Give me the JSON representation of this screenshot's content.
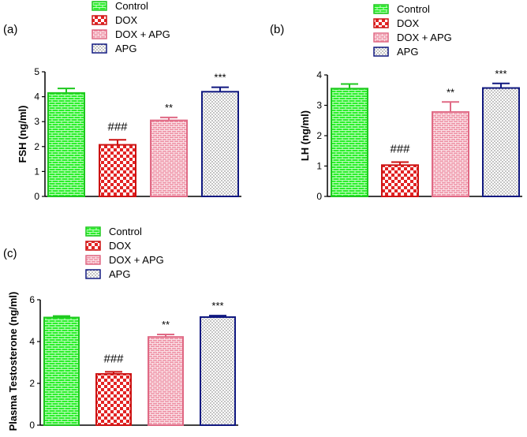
{
  "legend": [
    "Control",
    "DOX",
    "DOX + APG",
    "APG"
  ],
  "colors": {
    "control_fill": "#2bef2b",
    "control_edge": "#1ec81e",
    "control_pattern": "#e8ffe8",
    "dox_fill": "#e22424",
    "dox_edge": "#cc1111",
    "dox_pattern": "#ffffff",
    "doxapg_fill": "#ee8fa3",
    "doxapg_edge": "#e06a85",
    "doxapg_pattern": "#ffffff",
    "apg_fill": "#ffffff",
    "apg_edge": "#101880",
    "apg_pattern": "#303030",
    "axis": "#000000"
  },
  "chart_data": [
    {
      "panel": "(a)",
      "type": "bar",
      "ylabel": "FSH (ng/ml)",
      "categories": [
        "Control",
        "DOX",
        "DOX + APG",
        "APG"
      ],
      "values": [
        4.15,
        2.07,
        3.05,
        4.2
      ],
      "errors": [
        0.18,
        0.2,
        0.12,
        0.18
      ],
      "annotations": [
        "",
        "###",
        "**",
        "***"
      ],
      "ylim": [
        0,
        5
      ],
      "yticks": [
        "0",
        "1",
        "2",
        "3",
        "4",
        "5"
      ]
    },
    {
      "panel": "(b)",
      "type": "bar",
      "ylabel": "LH (ng/ml)",
      "categories": [
        "Control",
        "DOX",
        "DOX + APG",
        "APG"
      ],
      "values": [
        3.55,
        1.03,
        2.78,
        3.57
      ],
      "errors": [
        0.15,
        0.1,
        0.33,
        0.15
      ],
      "annotations": [
        "",
        "###",
        "**",
        "***"
      ],
      "ylim": [
        0,
        4
      ],
      "yticks": [
        "0",
        "1",
        "2",
        "3",
        "4"
      ]
    },
    {
      "panel": "(c)",
      "type": "bar",
      "ylabel": "Plasma Testosterone (ng/ml)",
      "categories": [
        "Control",
        "DOX",
        "DOX + APG",
        "APG"
      ],
      "values": [
        5.15,
        2.45,
        4.22,
        5.17
      ],
      "errors": [
        0.07,
        0.1,
        0.12,
        0.07
      ],
      "annotations": [
        "",
        "###",
        "**",
        "***"
      ],
      "ylim": [
        0,
        6
      ],
      "yticks": [
        "0",
        "2",
        "4",
        "6"
      ]
    }
  ]
}
